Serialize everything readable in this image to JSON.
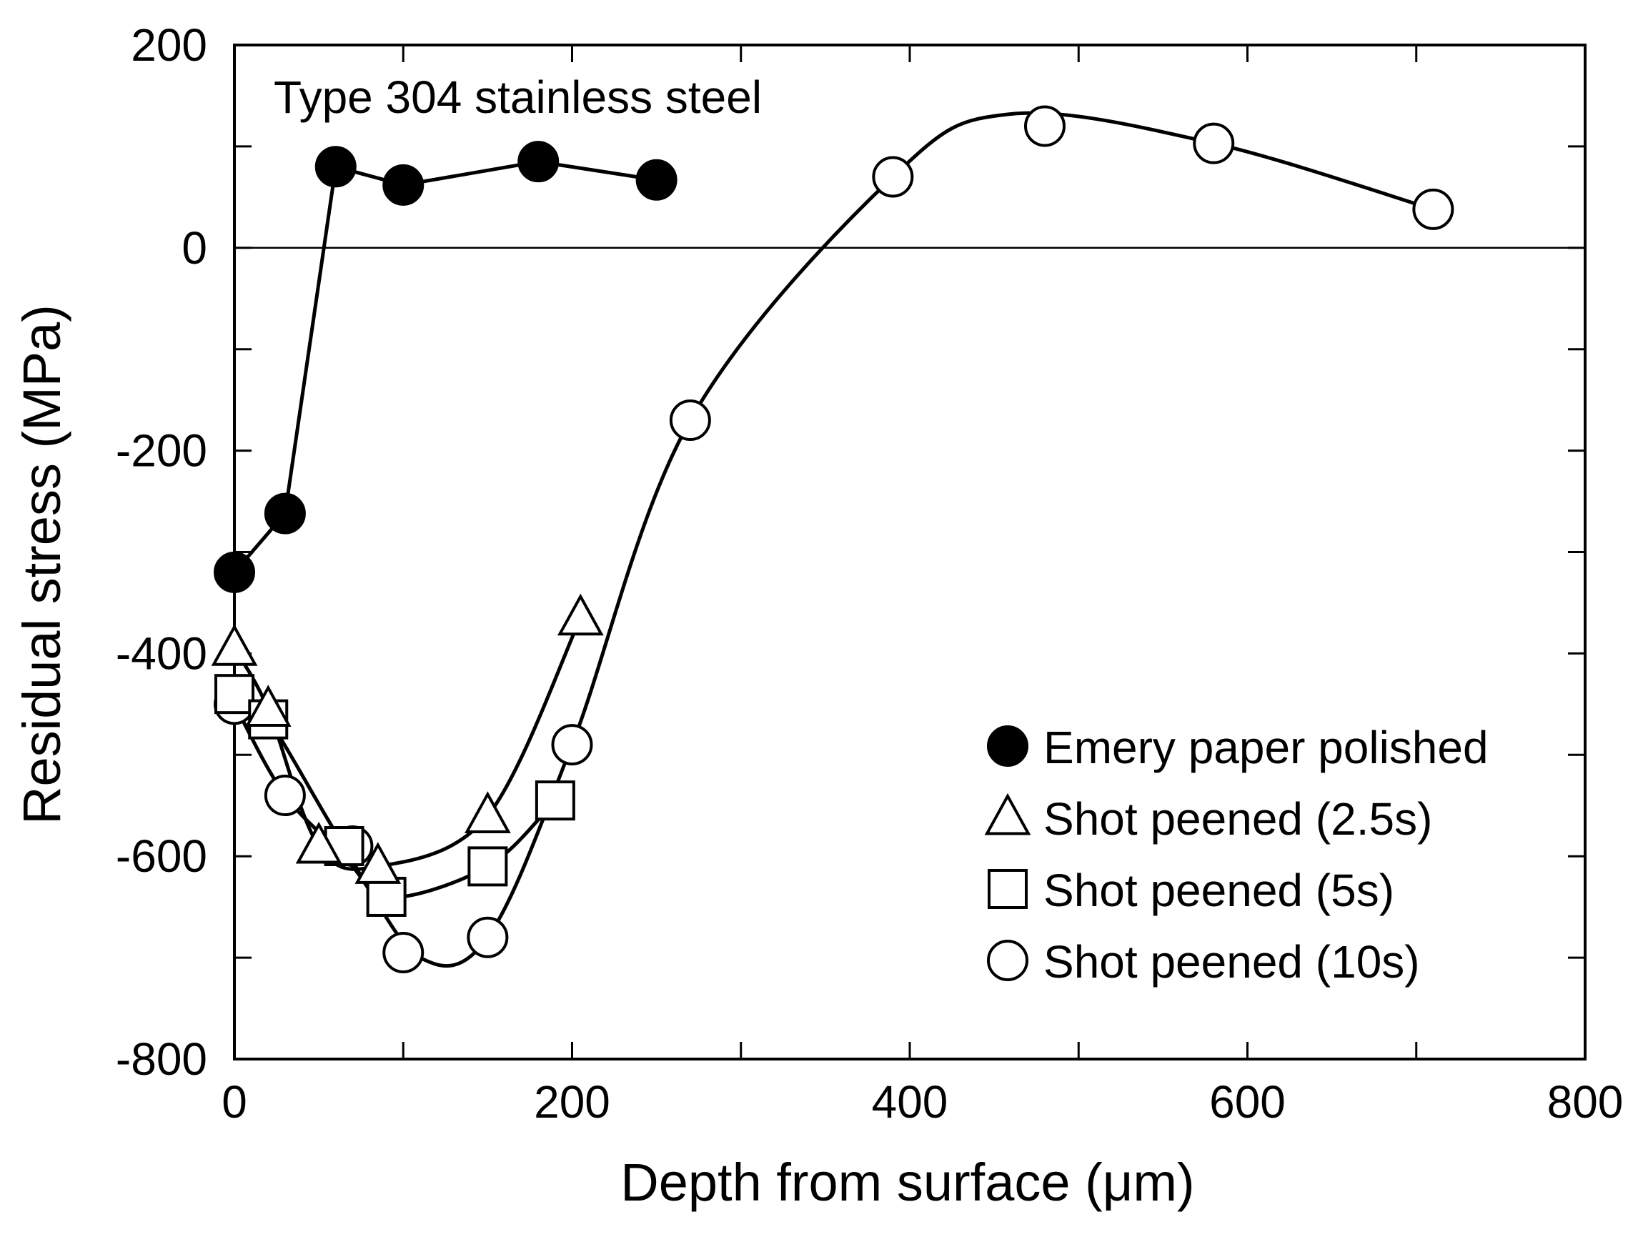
{
  "chart_data": {
    "type": "line",
    "annotation": "Type 304 stainless steel",
    "xlabel": "Depth from surface (μm)",
    "ylabel": "Residual stress (MPa)",
    "xlim": [
      0,
      800
    ],
    "ylim": [
      -800,
      200
    ],
    "x_ticks": [
      0,
      200,
      400,
      600,
      800
    ],
    "x_tick_labels": [
      "0",
      "200",
      "400",
      "600",
      "800"
    ],
    "x_minor_ticks": [
      100,
      300,
      500,
      700
    ],
    "y_ticks": [
      -800,
      -600,
      -400,
      -200,
      0,
      200
    ],
    "y_tick_labels": [
      "-800",
      "-600",
      "-400",
      "-200",
      "0",
      "200"
    ],
    "y_minor_ticks": [
      -700,
      -500,
      -300,
      -100,
      100
    ],
    "zero_line": true,
    "grid": false,
    "legend_position": "bottom-right",
    "series": [
      {
        "name": "Emery paper polished",
        "marker": "filled-circle",
        "x": [
          0,
          30,
          60,
          100,
          180,
          250
        ],
        "y": [
          -320,
          -262,
          80,
          62,
          85,
          67
        ],
        "line": "straight",
        "line_x": [
          0,
          30,
          60,
          100,
          180,
          250
        ],
        "line_y": [
          -320,
          -262,
          80,
          62,
          85,
          67
        ]
      },
      {
        "name": "Shot peened (2.5s)",
        "marker": "triangle",
        "x": [
          0,
          20,
          50,
          85,
          150,
          205
        ],
        "y": [
          -395,
          -455,
          -590,
          -610,
          -560,
          -365
        ],
        "line": "smooth",
        "line_x": [
          0,
          20,
          50,
          85,
          150,
          205
        ],
        "line_y": [
          -395,
          -455,
          -590,
          -610,
          -560,
          -365
        ]
      },
      {
        "name": "Shot peened (5s)",
        "marker": "square",
        "x": [
          0,
          20,
          65,
          90,
          150,
          190
        ],
        "y": [
          -440,
          -465,
          -590,
          -640,
          -610,
          -545
        ],
        "line": "smooth",
        "line_x": [
          0,
          20,
          65,
          90,
          150,
          190
        ],
        "line_y": [
          -440,
          -465,
          -590,
          -640,
          -610,
          -545
        ]
      },
      {
        "name": "Shot peened (10s)",
        "marker": "open-circle",
        "x": [
          0,
          30,
          70,
          100,
          150,
          200,
          270,
          390,
          480,
          580,
          710
        ],
        "y": [
          -450,
          -540,
          -590,
          -695,
          -680,
          -490,
          -170,
          70,
          120,
          103,
          38
        ],
        "line": "smooth",
        "line_x": [
          0,
          30,
          70,
          110,
          150,
          200,
          270,
          390,
          460,
          580,
          710
        ],
        "line_y": [
          -450,
          -540,
          -610,
          -700,
          -680,
          -490,
          -170,
          70,
          132,
          103,
          38
        ]
      }
    ]
  }
}
